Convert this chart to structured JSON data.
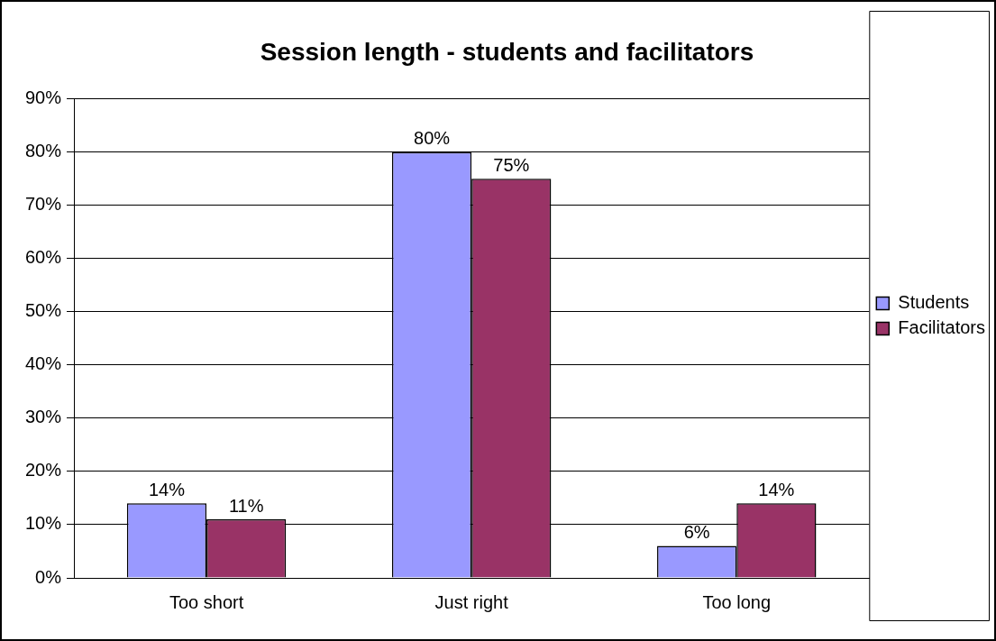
{
  "chart_data": {
    "type": "bar",
    "title": "Session length - students and facilitators",
    "categories": [
      "Too short",
      "Just right",
      "Too long"
    ],
    "series": [
      {
        "name": "Students",
        "color": "#9999ff",
        "values": [
          14,
          80,
          6
        ],
        "value_labels": [
          "14%",
          "80%",
          "6%"
        ]
      },
      {
        "name": "Facilitators",
        "color": "#993366",
        "values": [
          11,
          75,
          14
        ],
        "value_labels": [
          "11%",
          "75%",
          "14%"
        ]
      }
    ],
    "ylim": [
      0,
      90
    ],
    "yticks": [
      {
        "value": 0,
        "label": "0%"
      },
      {
        "value": 10,
        "label": "10%"
      },
      {
        "value": 20,
        "label": "20%"
      },
      {
        "value": 30,
        "label": "30%"
      },
      {
        "value": 40,
        "label": "40%"
      },
      {
        "value": 50,
        "label": "50%"
      },
      {
        "value": 60,
        "label": "60%"
      },
      {
        "value": 70,
        "label": "70%"
      },
      {
        "value": 80,
        "label": "80%"
      },
      {
        "value": 90,
        "label": "90%"
      }
    ],
    "grid": "y",
    "legend": "right"
  }
}
